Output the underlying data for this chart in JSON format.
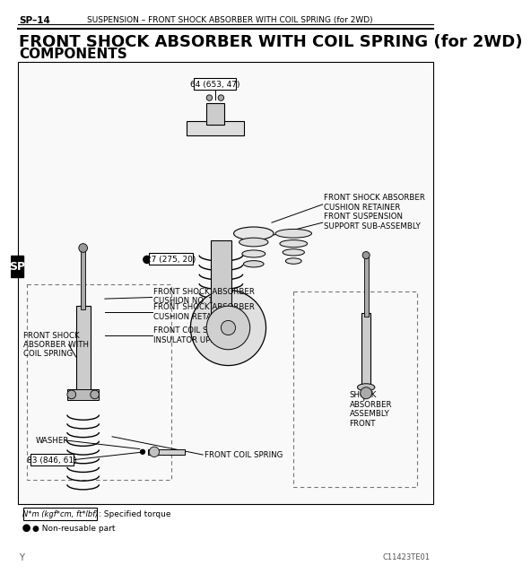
{
  "page_id": "SP-14",
  "header_left": "SP–14",
  "header_center": "SUSPENSION – FRONT SHOCK ABSORBER WITH COIL SPRING (for 2WD)",
  "title_line1": "FRONT SHOCK ABSORBER WITH COIL SPRING (for 2WD)",
  "title_line2": "COMPONENTS",
  "torque_label1": "64 (653, 47)",
  "torque_label2": "27 (275, 20)",
  "torque_label3": "83 (846, 61)",
  "legend_torque": "N*m (kgf*cm, ft*lbf)",
  "legend_torque_desc": ": Specified torque",
  "legend_nonreuse": "● Non-reusable part",
  "diagram_id": "C11423TE01",
  "side_label": "SP",
  "footer_y": "Y",
  "parts": [
    "FRONT SHOCK ABSORBER\nCUSHION RETAINER",
    "FRONT SUSPENSION\nSUPPORT SUB-ASSEMBLY",
    "FRONT SHOCK ABSORBER\nCUSHION NO. 1",
    "FRONT SHOCK ABSORBER\nCUSHION RETAINER",
    "FRONT SHOCK\nABSORBER WITH\nCOIL SPRING",
    "FRONT COIL SPRING\nINSULATOR UPPER",
    "WASHER",
    "FRONT COIL SPRING",
    "SHOCK\nABSORBER\nASSEMBLY\nFRONT"
  ],
  "bg_color": "#ffffff",
  "border_color": "#000000",
  "text_color": "#000000",
  "gray_color": "#555555"
}
